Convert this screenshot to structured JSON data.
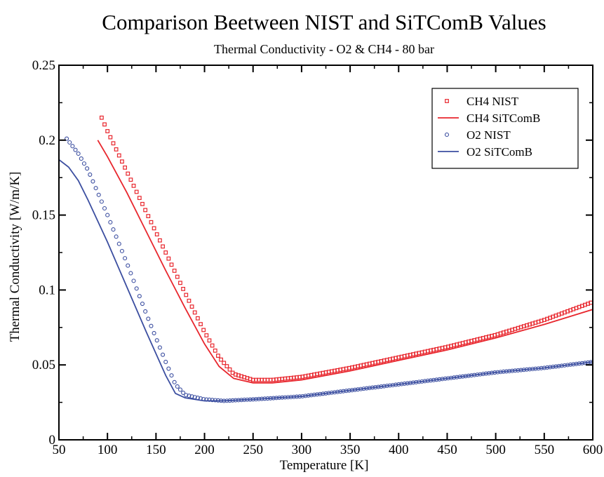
{
  "chart_data": {
    "type": "line",
    "title": "Comparison Beetween NIST and SiTComB Values",
    "subtitle": "Thermal Conductivity - O2 & CH4 - 80 bar",
    "xlabel": "Temperature [K]",
    "ylabel": "Thermal Conductivity [W/m/K]",
    "xlim": [
      50,
      600
    ],
    "ylim": [
      0,
      0.25
    ],
    "x_ticks": [
      50,
      100,
      150,
      200,
      250,
      300,
      350,
      400,
      450,
      500,
      550,
      600
    ],
    "x_tick_labels": [
      "50",
      "100",
      "150",
      "200",
      "250",
      "300",
      "350",
      "400",
      "450",
      "500",
      "550",
      "600"
    ],
    "y_ticks": [
      0,
      0.05,
      0.1,
      0.15,
      0.2,
      0.25
    ],
    "y_tick_labels": [
      "0",
      "0.05",
      "0.1",
      "0.15",
      "0.2",
      "0.25"
    ],
    "grid": false,
    "legend_position": "top-right",
    "series": [
      {
        "name": "CH4 NIST",
        "color": "#e8262d",
        "marker": "square",
        "line": false,
        "x_start": 94,
        "x_end": 600,
        "x_step": 3,
        "points": [
          [
            94,
            0.215
          ],
          [
            100,
            0.206
          ],
          [
            120,
            0.179
          ],
          [
            140,
            0.152
          ],
          [
            160,
            0.125
          ],
          [
            180,
            0.098
          ],
          [
            200,
            0.072
          ],
          [
            215,
            0.055
          ],
          [
            230,
            0.044
          ],
          [
            250,
            0.04
          ],
          [
            270,
            0.04
          ],
          [
            300,
            0.042
          ],
          [
            350,
            0.048
          ],
          [
            400,
            0.055
          ],
          [
            450,
            0.062
          ],
          [
            500,
            0.07
          ],
          [
            550,
            0.08
          ],
          [
            600,
            0.092
          ]
        ]
      },
      {
        "name": "CH4 SiTComB",
        "color": "#e8262d",
        "marker": "none",
        "line": true,
        "points": [
          [
            90,
            0.2
          ],
          [
            100,
            0.189
          ],
          [
            120,
            0.165
          ],
          [
            140,
            0.139
          ],
          [
            160,
            0.113
          ],
          [
            180,
            0.088
          ],
          [
            200,
            0.064
          ],
          [
            215,
            0.049
          ],
          [
            230,
            0.041
          ],
          [
            250,
            0.038
          ],
          [
            270,
            0.038
          ],
          [
            300,
            0.04
          ],
          [
            350,
            0.046
          ],
          [
            400,
            0.053
          ],
          [
            450,
            0.06
          ],
          [
            500,
            0.068
          ],
          [
            550,
            0.077
          ],
          [
            600,
            0.087
          ]
        ]
      },
      {
        "name": "O2 NIST",
        "color": "#3b4ea0",
        "marker": "circle",
        "line": false,
        "x_start": 58,
        "x_end": 600,
        "x_step": 3,
        "points": [
          [
            58,
            0.201
          ],
          [
            70,
            0.191
          ],
          [
            80,
            0.18
          ],
          [
            100,
            0.15
          ],
          [
            120,
            0.118
          ],
          [
            140,
            0.084
          ],
          [
            160,
            0.052
          ],
          [
            170,
            0.037
          ],
          [
            180,
            0.03
          ],
          [
            200,
            0.027
          ],
          [
            220,
            0.026
          ],
          [
            250,
            0.027
          ],
          [
            300,
            0.029
          ],
          [
            350,
            0.033
          ],
          [
            400,
            0.037
          ],
          [
            450,
            0.041
          ],
          [
            500,
            0.045
          ],
          [
            550,
            0.048
          ],
          [
            600,
            0.052
          ]
        ]
      },
      {
        "name": "O2 SiTComB",
        "color": "#3b4ea0",
        "marker": "none",
        "line": true,
        "points": [
          [
            50,
            0.187
          ],
          [
            60,
            0.182
          ],
          [
            70,
            0.173
          ],
          [
            80,
            0.16
          ],
          [
            100,
            0.132
          ],
          [
            120,
            0.102
          ],
          [
            140,
            0.072
          ],
          [
            160,
            0.043
          ],
          [
            170,
            0.031
          ],
          [
            180,
            0.028
          ],
          [
            200,
            0.026
          ],
          [
            220,
            0.026
          ],
          [
            250,
            0.027
          ],
          [
            300,
            0.029
          ],
          [
            350,
            0.033
          ],
          [
            400,
            0.037
          ],
          [
            450,
            0.041
          ],
          [
            500,
            0.045
          ],
          [
            550,
            0.048
          ],
          [
            600,
            0.052
          ]
        ]
      }
    ]
  }
}
